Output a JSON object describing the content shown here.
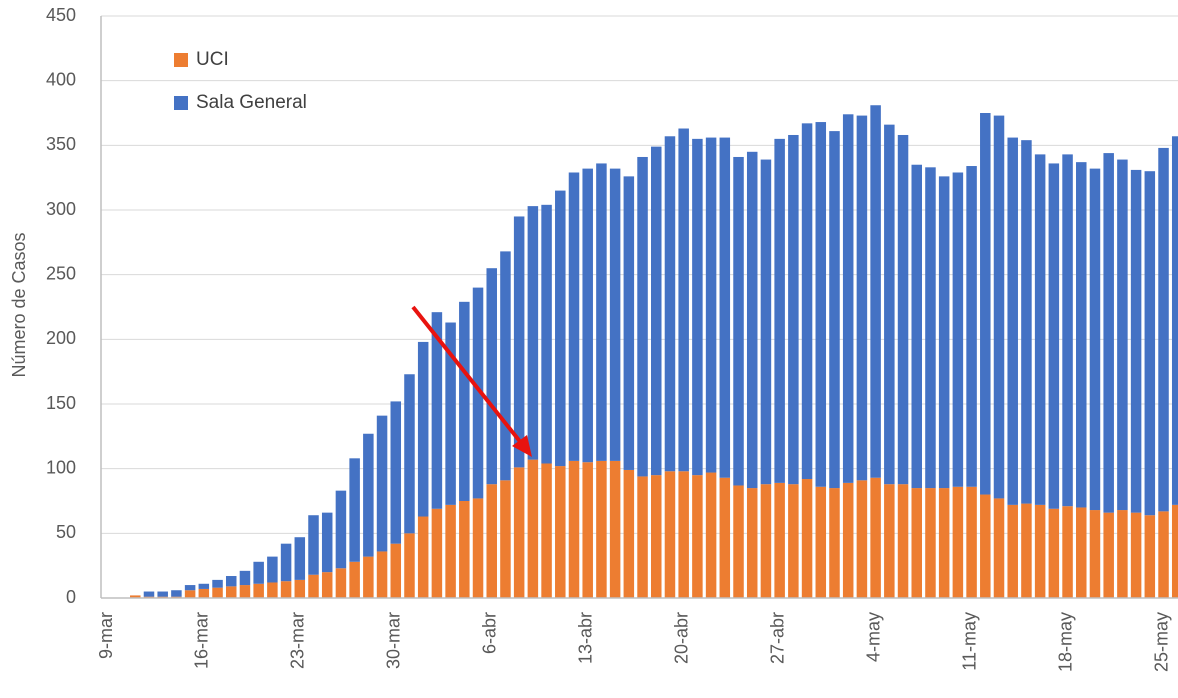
{
  "chart_data": {
    "type": "stacked_bar",
    "y_label": "Número de Casos",
    "categories": [
      "9-mar",
      null,
      null,
      null,
      null,
      null,
      null,
      "16-mar",
      null,
      null,
      null,
      null,
      null,
      null,
      "23-mar",
      null,
      null,
      null,
      null,
      null,
      null,
      "30-mar",
      null,
      null,
      null,
      null,
      null,
      null,
      "6-abr",
      null,
      null,
      null,
      null,
      null,
      null,
      "13-abr",
      null,
      null,
      null,
      null,
      null,
      null,
      "20-abr",
      null,
      null,
      null,
      null,
      null,
      null,
      "27-abr",
      null,
      null,
      null,
      null,
      null,
      null,
      "4-may",
      null,
      null,
      null,
      null,
      null,
      null,
      "11-may",
      null,
      null,
      null,
      null,
      null,
      null,
      "18-may",
      null,
      null,
      null,
      null,
      null,
      null,
      "25-may",
      null
    ],
    "series": [
      {
        "name": "UCI",
        "color": "#ed7d31",
        "values": [
          0,
          0,
          2,
          1,
          1,
          1,
          6,
          7,
          8,
          9,
          10,
          11,
          12,
          13,
          14,
          18,
          20,
          23,
          28,
          32,
          36,
          42,
          50,
          63,
          69,
          72,
          75,
          77,
          88,
          91,
          101,
          107,
          104,
          102,
          106,
          105,
          106,
          106,
          99,
          94,
          95,
          98,
          98,
          95,
          97,
          93,
          87,
          85,
          88,
          89,
          88,
          92,
          86,
          85,
          89,
          91,
          93,
          88,
          88,
          85,
          85,
          85,
          86,
          86,
          80,
          77,
          72,
          73,
          72,
          69,
          71,
          70,
          68,
          66,
          68,
          66,
          64,
          67,
          72
        ]
      },
      {
        "name": "Sala General",
        "color": "#4472c4",
        "values": [
          0,
          0,
          0,
          4,
          4,
          5,
          4,
          4,
          6,
          8,
          11,
          17,
          20,
          29,
          33,
          46,
          46,
          60,
          80,
          95,
          105,
          110,
          123,
          135,
          152,
          141,
          154,
          163,
          167,
          177,
          194,
          196,
          200,
          213,
          223,
          227,
          230,
          226,
          227,
          247,
          254,
          259,
          265,
          260,
          259,
          263,
          254,
          260,
          251,
          266,
          270,
          275,
          282,
          276,
          285,
          282,
          288,
          278,
          270,
          250,
          248,
          241,
          243,
          248,
          295,
          296,
          284,
          281,
          271,
          267,
          272,
          267,
          264,
          278,
          271,
          265,
          266,
          281,
          285
        ]
      }
    ],
    "ylim": [
      0,
      450
    ],
    "yticks": [
      0,
      50,
      100,
      150,
      200,
      250,
      300,
      350,
      400,
      450
    ],
    "grid": true,
    "legend": "upper-left"
  }
}
